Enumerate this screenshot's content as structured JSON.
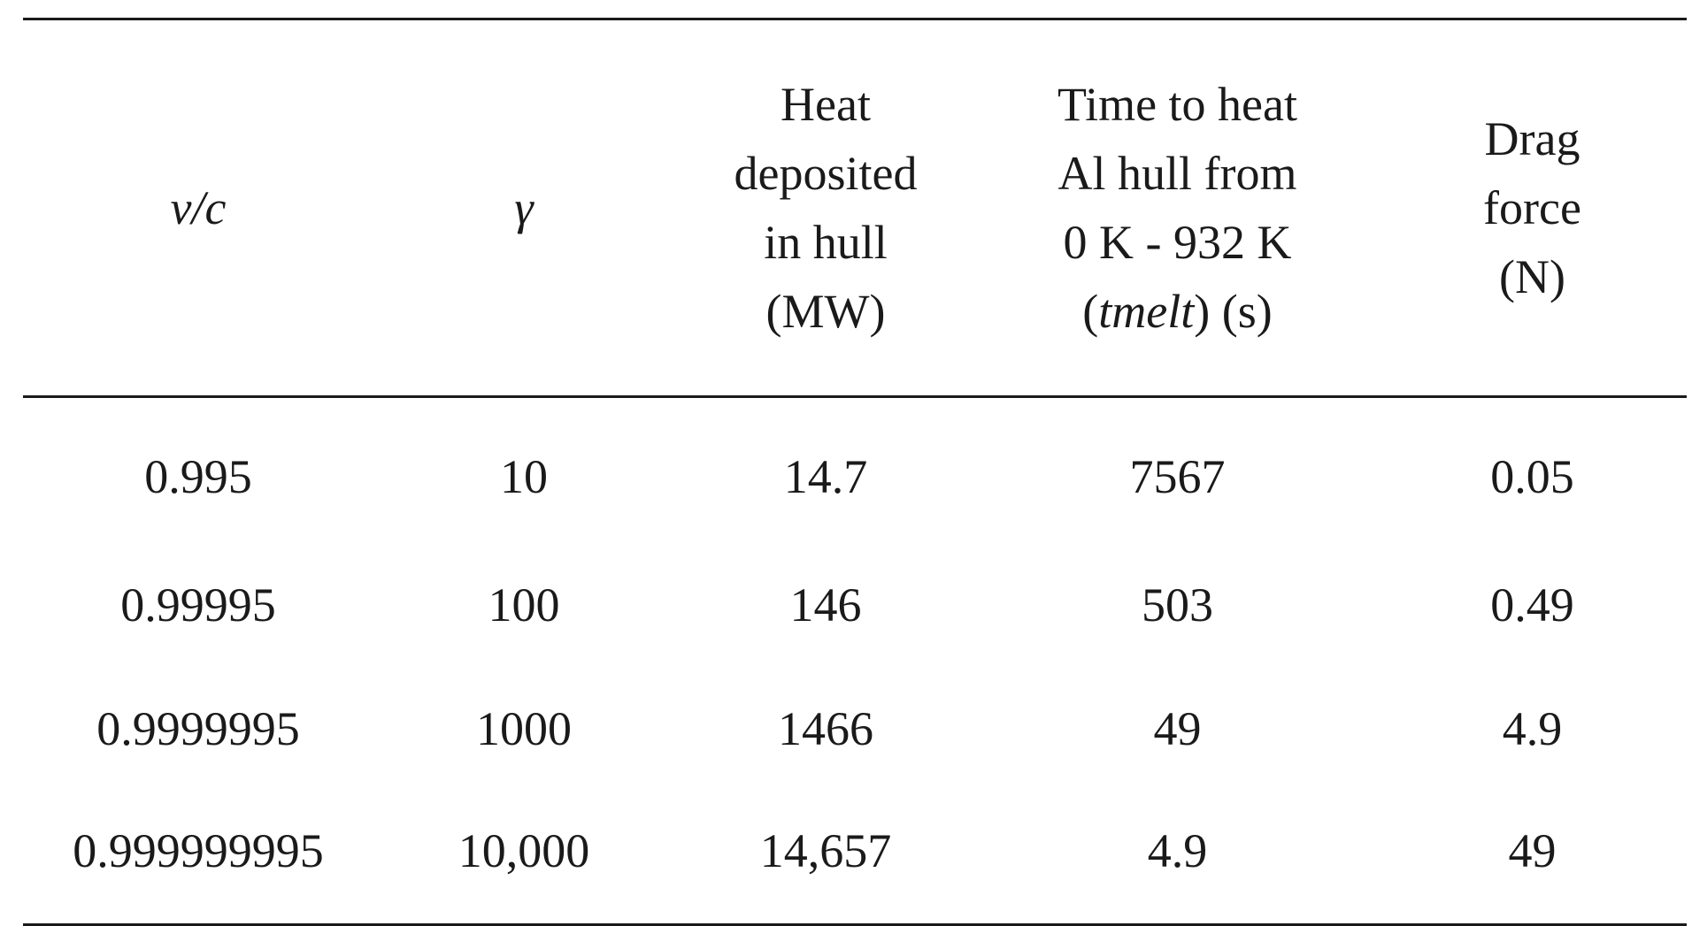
{
  "table": {
    "headers": {
      "v_over_c": "v/c",
      "gamma": "γ",
      "heat": {
        "line1": "Heat",
        "line2": "deposited",
        "line3": "in hull",
        "line4": "(MW)"
      },
      "time": {
        "line1": "Time to heat",
        "line2": "Al hull from",
        "line3": "0 K - 932 K",
        "line4_open": "(",
        "line4_italic": "tmelt",
        "line4_close": ") (s)"
      },
      "drag": {
        "line1": "Drag",
        "line2": "force",
        "line3": "(N)"
      }
    },
    "rows": [
      [
        "0.995",
        "10",
        "14.7",
        "7567",
        "0.05"
      ],
      [
        "0.99995",
        "100",
        "146",
        "503",
        "0.49"
      ],
      [
        "0.9999995",
        "1000",
        "1466",
        "49",
        "4.9"
      ],
      [
        "0.999999995",
        "10,000",
        "14,657",
        "4.9",
        "49"
      ]
    ]
  }
}
